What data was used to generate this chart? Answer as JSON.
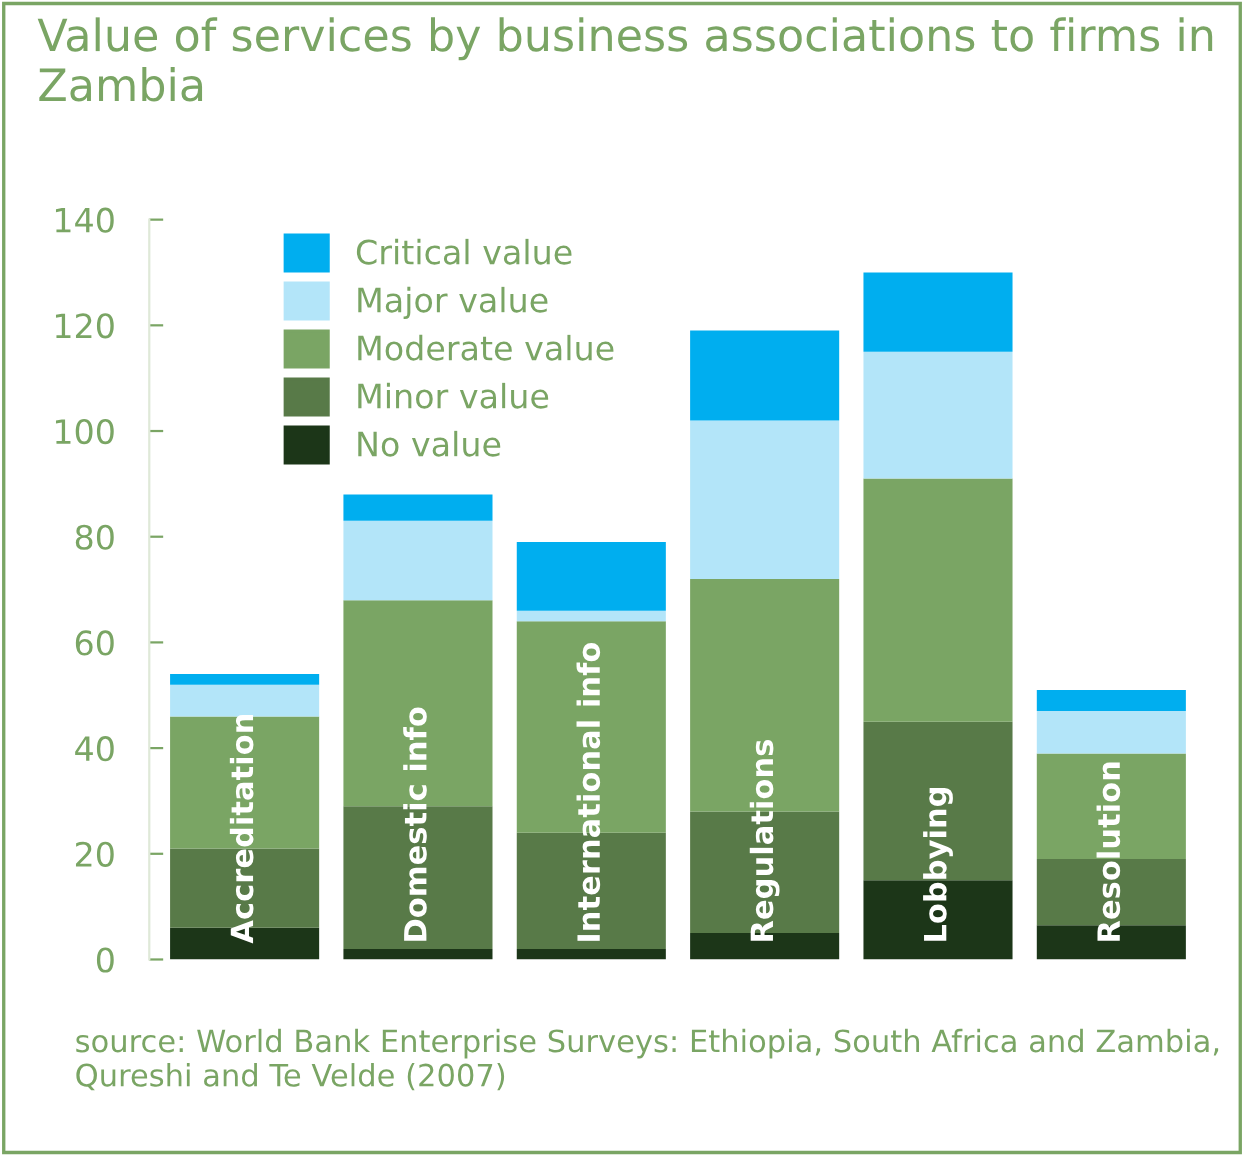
{
  "chart_data": {
    "type": "bar",
    "stacked": true,
    "title": "Value of services by business associations to firms in Zambia",
    "categories": [
      "Accreditation",
      "Domestic info",
      "International info",
      "Regulations",
      "Lobbying",
      "Resolution"
    ],
    "series": [
      {
        "name": "No value",
        "color": "#1c3618",
        "values": [
          6,
          2,
          2,
          5,
          15,
          6.5
        ]
      },
      {
        "name": "Minor value",
        "color": "#587a48",
        "values": [
          15,
          27,
          22,
          23,
          30,
          12.5
        ]
      },
      {
        "name": "Moderate value",
        "color": "#7aa564",
        "values": [
          25,
          39,
          40,
          44,
          46,
          20
        ]
      },
      {
        "name": "Major value",
        "color": "#b3e5f9",
        "values": [
          6,
          15,
          2,
          30,
          24,
          8
        ]
      },
      {
        "name": "Critical value",
        "color": "#00aeef",
        "values": [
          2,
          5,
          13,
          17,
          15,
          4
        ]
      }
    ],
    "ylim": [
      0,
      140
    ],
    "yticks": [
      0,
      20,
      40,
      60,
      80,
      100,
      120,
      140
    ],
    "grid": false,
    "legend": "top left",
    "annotations": [
      "source: World Bank Enterprise Surveys: Ethiopia, South Africa and Zambia, Qureshi and Te Velde (2007)"
    ]
  }
}
